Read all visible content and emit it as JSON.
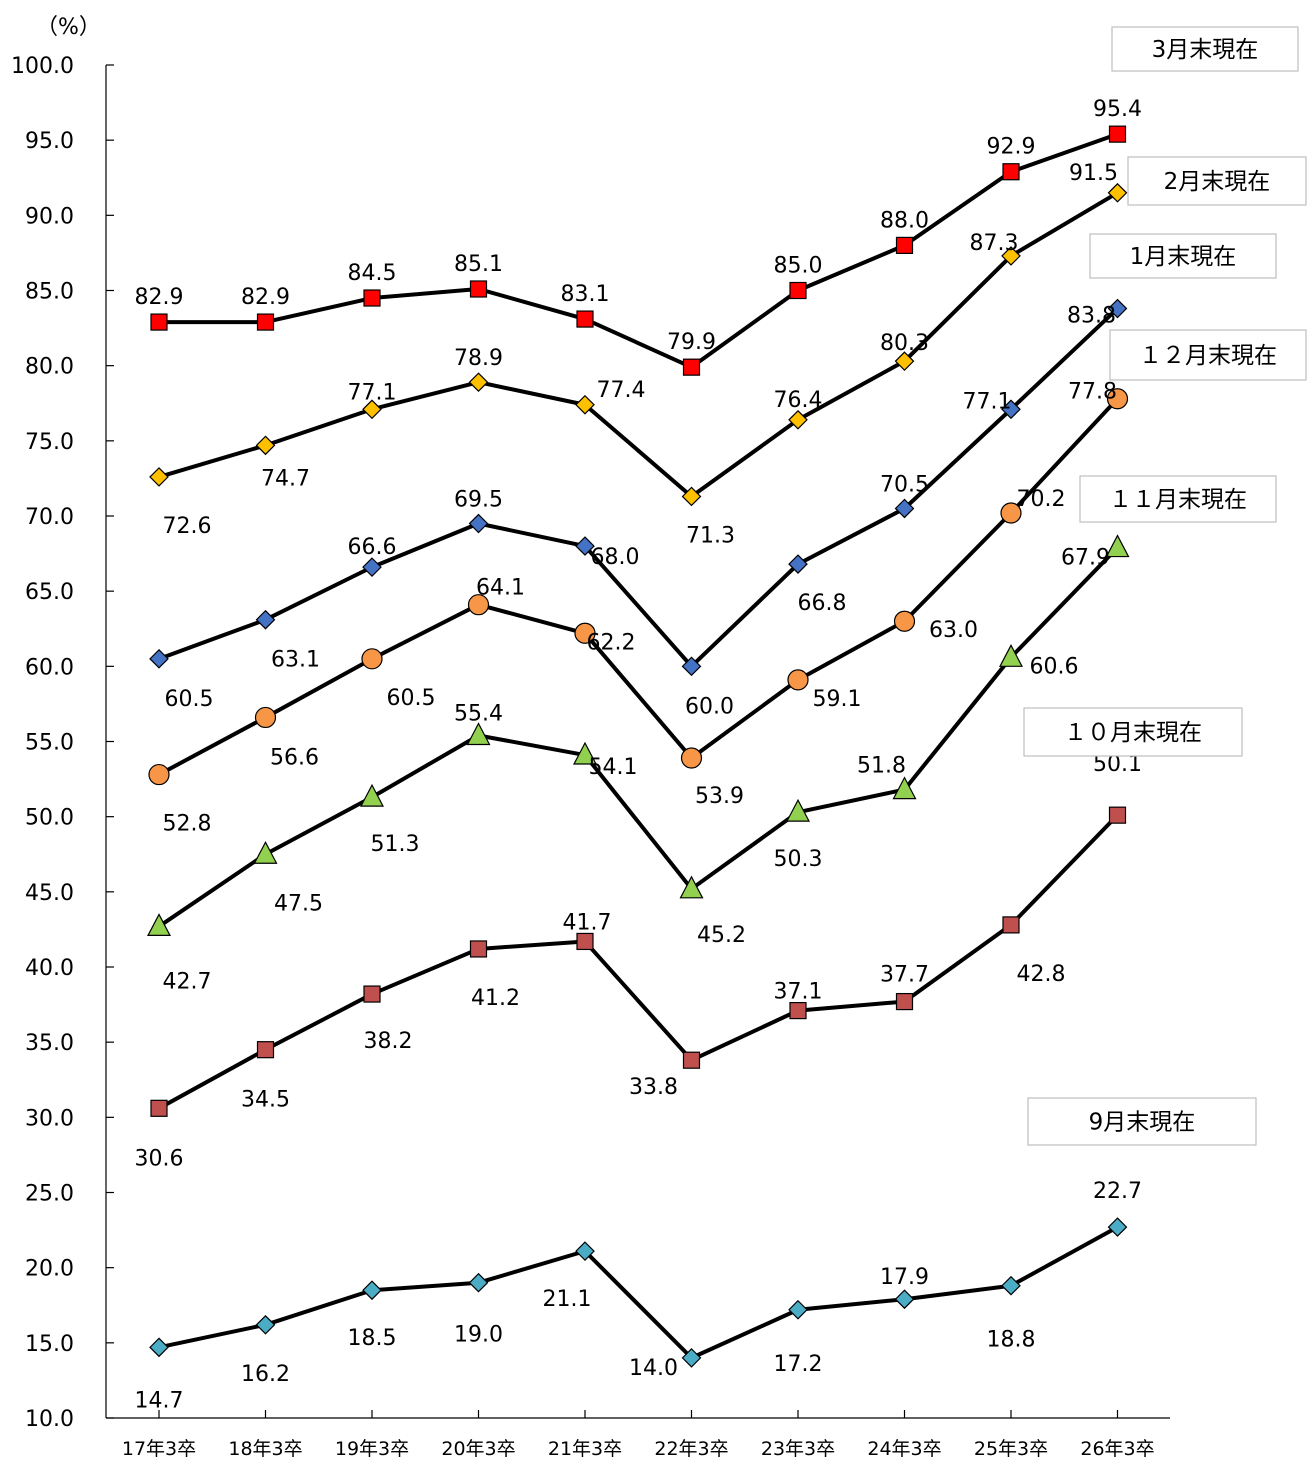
{
  "chart_data": {
    "type": "line",
    "unit_label": "（%）",
    "categories": [
      "17年3卒",
      "18年3卒",
      "19年3卒",
      "20年3卒",
      "21年3卒",
      "22年3卒",
      "23年3卒",
      "24年3卒",
      "25年3卒",
      "26年3卒"
    ],
    "ylim": [
      10.0,
      100.0
    ],
    "yticks": [
      "10.0",
      "15.0",
      "20.0",
      "25.0",
      "30.0",
      "35.0",
      "40.0",
      "45.0",
      "50.0",
      "55.0",
      "60.0",
      "65.0",
      "70.0",
      "75.0",
      "80.0",
      "85.0",
      "90.0",
      "95.0",
      "100.0"
    ],
    "grid": false,
    "series": [
      {
        "name": "3月末現在",
        "marker": "square",
        "color": "#FF0000",
        "values": [
          82.9,
          82.9,
          84.5,
          85.1,
          83.1,
          79.9,
          85.0,
          88.0,
          92.9,
          95.4
        ],
        "labels": [
          "82.9",
          "82.9",
          "84.5",
          "85.1",
          "83.1",
          "79.9",
          "85.0",
          "88.0",
          "92.9",
          "95.4"
        ]
      },
      {
        "name": "2月末現在",
        "marker": "diamond",
        "color": "#FFC000",
        "values": [
          72.6,
          74.7,
          77.1,
          78.9,
          77.4,
          71.3,
          76.4,
          80.3,
          87.3,
          91.5
        ],
        "labels": [
          "72.6",
          "74.7",
          "77.1",
          "78.9",
          "77.4",
          "71.3",
          "76.4",
          "80.3",
          "87.3",
          "91.5"
        ]
      },
      {
        "name": "1月末現在",
        "marker": "diamond",
        "color": "#4472C4",
        "values": [
          60.5,
          63.1,
          66.6,
          69.5,
          68.0,
          60.0,
          66.8,
          70.5,
          77.1,
          83.8
        ],
        "labels": [
          "60.5",
          "63.1",
          "66.6",
          "69.5",
          "68.0",
          "60.0",
          "66.8",
          "70.5",
          "77.1",
          "83.8"
        ]
      },
      {
        "name": "１２月末現在",
        "marker": "circle",
        "color": "#F79646",
        "values": [
          52.8,
          56.6,
          60.5,
          64.1,
          62.2,
          53.9,
          59.1,
          63.0,
          70.2,
          77.8
        ],
        "labels": [
          "52.8",
          "56.6",
          "60.5",
          "64.1",
          "62.2",
          "53.9",
          "59.1",
          "63.0",
          "70.2",
          "77.8"
        ]
      },
      {
        "name": "１１月末現在",
        "marker": "triangle",
        "color": "#92D050",
        "values": [
          42.7,
          47.5,
          51.3,
          55.4,
          54.1,
          45.2,
          50.3,
          51.8,
          60.6,
          67.9
        ],
        "labels": [
          "42.7",
          "47.5",
          "51.3",
          "55.4",
          "54.1",
          "45.2",
          "50.3",
          "51.8",
          "60.6",
          "67.9"
        ]
      },
      {
        "name": "１０月末現在",
        "marker": "square",
        "color": "#C0504D",
        "values": [
          30.6,
          34.5,
          38.2,
          41.2,
          41.7,
          33.8,
          37.1,
          37.7,
          42.8,
          50.1
        ],
        "labels": [
          "30.6",
          "34.5",
          "38.2",
          "41.2",
          "41.7",
          "33.8",
          "37.1",
          "37.7",
          "42.8",
          "50.1"
        ]
      },
      {
        "name": "9月末現在",
        "marker": "diamond",
        "color": "#4BACC6",
        "values": [
          14.7,
          16.2,
          18.5,
          19.0,
          21.1,
          14.0,
          17.2,
          17.9,
          18.8,
          22.7
        ],
        "labels": [
          "14.7",
          "16.2",
          "18.5",
          "19.0",
          "21.1",
          "14.0",
          "17.2",
          "17.9",
          "18.8",
          "22.7"
        ]
      }
    ]
  }
}
